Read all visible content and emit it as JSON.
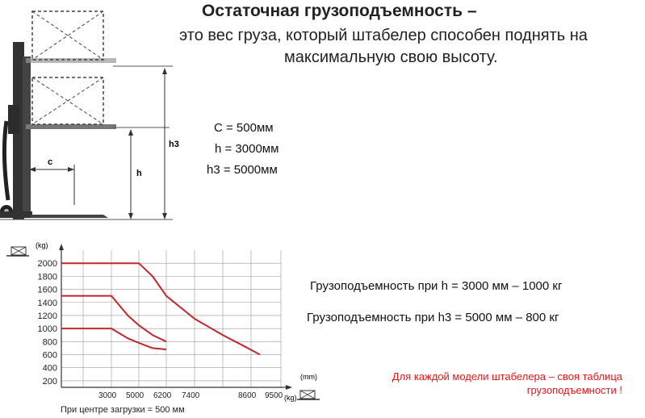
{
  "title": "Остаточная грузоподъемность –",
  "subtitle_line1": "это вес груза, который штабелер способен поднять на",
  "subtitle_line2": "максимальную свою высоту.",
  "diagram_labels": {
    "c": "c",
    "h": "h",
    "h3": "h3"
  },
  "parameters": [
    "C  = 500мм",
    "h = 3000мм",
    "h3 = 5000мм"
  ],
  "capacity_lines": [
    "Грузоподъемность  при h = 3000 мм  –  1000  кг",
    "Грузоподъемность  при h3 = 5000 мм  –  800  кг"
  ],
  "note_line1": "Для каждой модели штабелера – своя таблица",
  "note_line2": "грузоподъемности !",
  "footer": "При центре загрузки = 500 мм",
  "colors": {
    "curve": "#c0282d",
    "note": "#e0191b",
    "grid": "#999999"
  },
  "chart_data": {
    "type": "line",
    "y_unit": "(kg)",
    "x_unit_top": "(mm)",
    "x_unit_bottom": "(kg)",
    "yticks": [
      200,
      400,
      600,
      800,
      1000,
      1200,
      1400,
      1600,
      1800,
      2000
    ],
    "ylim": [
      100,
      2200
    ],
    "x_tick_labels": [
      "3000",
      "5000",
      "6200",
      "7400",
      "8600",
      "9500"
    ],
    "series": [
      {
        "values": [
          [
            0,
            2000
          ],
          [
            3,
            2000
          ],
          [
            3.5,
            1800
          ],
          [
            4,
            1500
          ],
          [
            5,
            1150
          ],
          [
            6,
            900
          ],
          [
            6.8,
            720
          ],
          [
            7.3,
            600
          ]
        ]
      },
      {
        "values": [
          [
            0,
            1500
          ],
          [
            2,
            1500
          ],
          [
            2.6,
            1200
          ],
          [
            3,
            1050
          ],
          [
            3.5,
            900
          ],
          [
            4,
            800
          ]
        ]
      },
      {
        "values": [
          [
            0,
            1000
          ],
          [
            2,
            1000
          ],
          [
            2.6,
            850
          ],
          [
            3,
            780
          ],
          [
            3.5,
            700
          ],
          [
            4,
            680
          ]
        ]
      }
    ]
  }
}
